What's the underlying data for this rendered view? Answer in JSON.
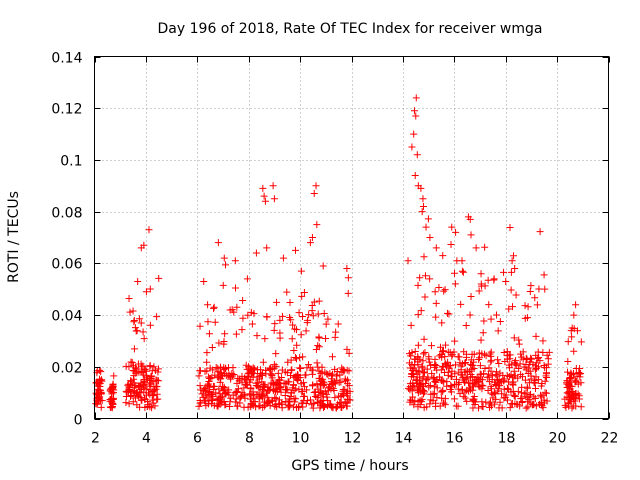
{
  "chart_data": {
    "type": "scatter",
    "title": "Day 196 of 2018, Rate Of TEC Index for receiver wmga",
    "xlabel": "GPS time / hours",
    "ylabel": "ROTI / TECUs",
    "xlim": [
      2,
      22
    ],
    "ylim": [
      0,
      0.14
    ],
    "xticks": [
      "2",
      "4",
      "6",
      "8",
      "10",
      "12",
      "14",
      "16",
      "18",
      "20",
      "22"
    ],
    "yticks": [
      "0",
      "0.02",
      "0.04",
      "0.06",
      "0.08",
      "0.1",
      "0.12",
      "0.14"
    ],
    "grid": true,
    "marker": "+",
    "color": "#ff0000",
    "segments": [
      {
        "start": 2.05,
        "end": 2.3,
        "base": 0.012,
        "peak": 0.022
      },
      {
        "start": 2.6,
        "end": 2.75,
        "base": 0.01,
        "peak": 0.016
      },
      {
        "start": 3.2,
        "end": 4.5,
        "base": 0.018,
        "peak": 0.054
      },
      {
        "start": 6.05,
        "end": 11.95,
        "base": 0.016,
        "peak": 0.058
      },
      {
        "start": 14.2,
        "end": 19.7,
        "base": 0.022,
        "peak": 0.075
      },
      {
        "start": 20.3,
        "end": 20.95,
        "base": 0.014,
        "peak": 0.044
      }
    ],
    "series": [
      {
        "name": "notable high ROTI values",
        "points": [
          [
            3.68,
            0.053
          ],
          [
            3.82,
            0.066
          ],
          [
            3.92,
            0.067
          ],
          [
            4.12,
            0.073
          ],
          [
            4.02,
            0.049
          ],
          [
            6.25,
            0.053
          ],
          [
            6.4,
            0.044
          ],
          [
            6.82,
            0.068
          ],
          [
            7.05,
            0.062
          ],
          [
            7.48,
            0.061
          ],
          [
            7.95,
            0.054
          ],
          [
            8.3,
            0.064
          ],
          [
            8.55,
            0.089
          ],
          [
            8.6,
            0.086
          ],
          [
            8.65,
            0.084
          ],
          [
            8.7,
            0.066
          ],
          [
            8.95,
            0.09
          ],
          [
            9.0,
            0.085
          ],
          [
            9.35,
            0.062
          ],
          [
            9.82,
            0.065
          ],
          [
            10.05,
            0.057
          ],
          [
            10.4,
            0.068
          ],
          [
            10.48,
            0.07
          ],
          [
            10.62,
            0.09
          ],
          [
            10.55,
            0.087
          ],
          [
            10.65,
            0.075
          ],
          [
            10.9,
            0.059
          ],
          [
            11.82,
            0.058
          ],
          [
            14.2,
            0.061
          ],
          [
            14.35,
            0.105
          ],
          [
            14.42,
            0.11
          ],
          [
            14.45,
            0.119
          ],
          [
            14.5,
            0.117
          ],
          [
            14.52,
            0.124
          ],
          [
            14.56,
            0.102
          ],
          [
            14.48,
            0.094
          ],
          [
            14.6,
            0.09
          ],
          [
            14.7,
            0.089
          ],
          [
            14.78,
            0.085
          ],
          [
            14.8,
            0.082
          ],
          [
            14.75,
            0.08
          ],
          [
            14.9,
            0.074
          ],
          [
            15.05,
            0.07
          ],
          [
            15.3,
            0.066
          ],
          [
            15.55,
            0.063
          ],
          [
            15.9,
            0.074
          ],
          [
            16.05,
            0.072
          ],
          [
            16.1,
            0.061
          ],
          [
            16.3,
            0.061
          ],
          [
            16.55,
            0.078
          ],
          [
            16.62,
            0.077
          ],
          [
            16.65,
            0.071
          ],
          [
            16.85,
            0.066
          ],
          [
            17.05,
            0.052
          ],
          [
            17.55,
            0.054
          ],
          [
            18.0,
            0.053
          ],
          [
            18.25,
            0.061
          ],
          [
            18.35,
            0.058
          ],
          [
            18.85,
            0.039
          ],
          [
            19.45,
            0.03
          ],
          [
            20.72,
            0.044
          ],
          [
            20.65,
            0.04
          ],
          [
            20.55,
            0.034
          ]
        ]
      }
    ]
  }
}
